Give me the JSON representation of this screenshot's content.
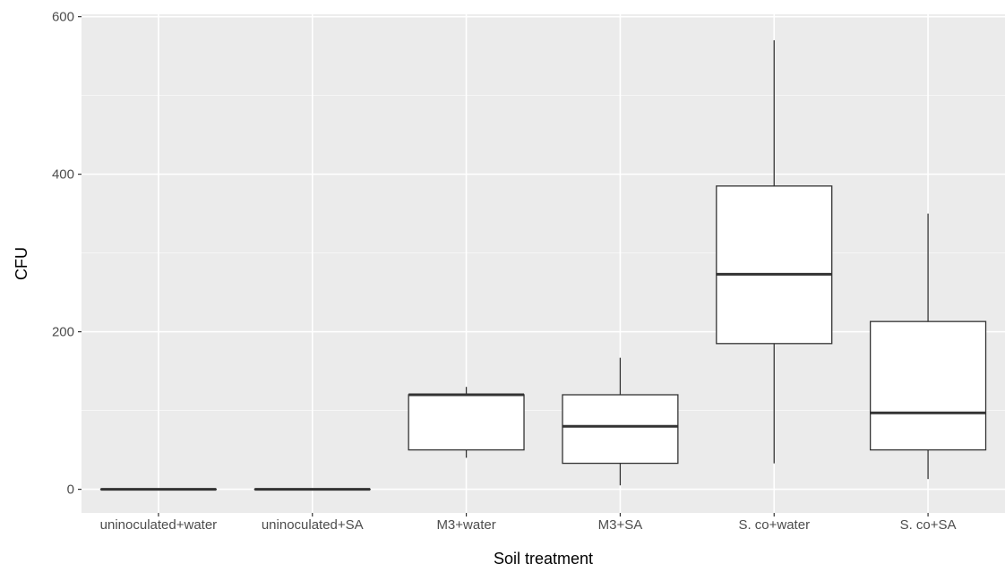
{
  "chart_data": {
    "type": "boxplot",
    "title": "",
    "xlabel": "Soil treatment",
    "ylabel": "CFU",
    "ylim": [
      -30,
      603
    ],
    "yticks": [
      0,
      200,
      400,
      600
    ],
    "grid": true,
    "categories": [
      "uninoculated+water",
      "uninoculated+SA",
      "M3+water",
      "M3+SA",
      "S. co+water",
      "S. co+SA"
    ],
    "boxes": [
      {
        "category": "uninoculated+water",
        "whisker_low": 0,
        "q1": 0,
        "median": 0,
        "q3": 0,
        "whisker_high": 0
      },
      {
        "category": "uninoculated+SA",
        "whisker_low": 0,
        "q1": 0,
        "median": 0,
        "q3": 0,
        "whisker_high": 0
      },
      {
        "category": "M3+water",
        "whisker_low": 40,
        "q1": 50,
        "median": 120,
        "q3": 120,
        "whisker_high": 130
      },
      {
        "category": "M3+SA",
        "whisker_low": 5,
        "q1": 33,
        "median": 80,
        "q3": 120,
        "whisker_high": 167
      },
      {
        "category": "S. co+water",
        "whisker_low": 33,
        "q1": 185,
        "median": 273,
        "q3": 385,
        "whisker_high": 570
      },
      {
        "category": "S. co+SA",
        "whisker_low": 13,
        "q1": 50,
        "median": 97,
        "q3": 213,
        "whisker_high": 350
      }
    ],
    "colors": {
      "panel": "#ebebeb",
      "grid_major": "#ffffff",
      "box_fill": "#ffffff",
      "box_line": "#333333",
      "tick_text": "#4d4d4d",
      "axis_title": "#000000"
    }
  }
}
